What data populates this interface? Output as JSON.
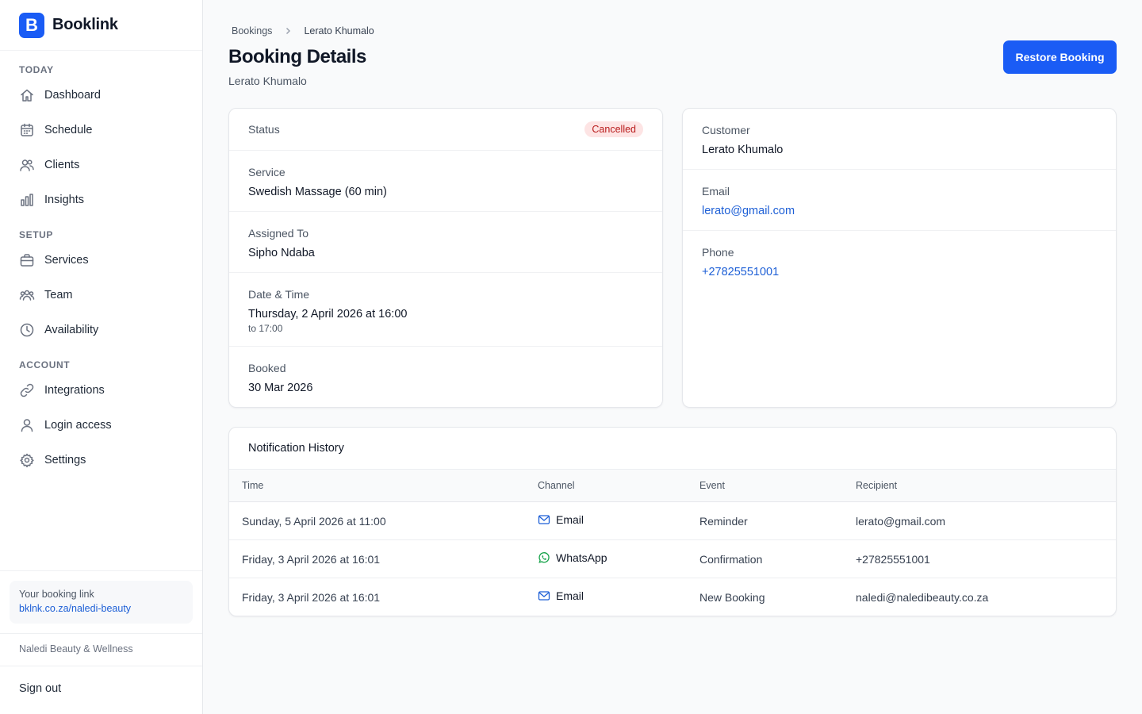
{
  "brand": {
    "logo_letter": "B",
    "name": "Booklink",
    "accent": "#1a5cf5"
  },
  "sidebar": {
    "sections": [
      {
        "label": "TODAY",
        "items": [
          {
            "label": "Dashboard",
            "icon": "home-icon"
          },
          {
            "label": "Schedule",
            "icon": "calendar-icon"
          },
          {
            "label": "Clients",
            "icon": "users-icon"
          },
          {
            "label": "Insights",
            "icon": "bar-chart-icon"
          }
        ]
      },
      {
        "label": "SETUP",
        "items": [
          {
            "label": "Services",
            "icon": "briefcase-icon"
          },
          {
            "label": "Team",
            "icon": "team-icon"
          },
          {
            "label": "Availability",
            "icon": "clock-icon"
          }
        ]
      },
      {
        "label": "ACCOUNT",
        "items": [
          {
            "label": "Integrations",
            "icon": "link-icon"
          },
          {
            "label": "Login access",
            "icon": "user-icon"
          },
          {
            "label": "Settings",
            "icon": "gear-icon"
          }
        ]
      }
    ],
    "booking_link": {
      "label": "Your booking link",
      "url": "bklnk.co.za/naledi-beauty"
    },
    "business_name": "Naledi Beauty & Wellness",
    "sign_out": "Sign out"
  },
  "breadcrumb": {
    "root": "Bookings",
    "current": "Lerato Khumalo"
  },
  "page": {
    "title": "Booking Details",
    "subtitle": "Lerato Khumalo",
    "restore_label": "Restore Booking"
  },
  "booking": {
    "status_label": "Status",
    "status_value": "Cancelled",
    "service_label": "Service",
    "service_value": "Swedish Massage (60 min)",
    "assigned_label": "Assigned To",
    "assigned_value": "Sipho Ndaba",
    "datetime_label": "Date & Time",
    "datetime_value": "Thursday, 2 April 2026 at 16:00",
    "datetime_end": "to 17:00",
    "booked_label": "Booked",
    "booked_value": "30 Mar 2026"
  },
  "customer": {
    "customer_label": "Customer",
    "customer_value": "Lerato Khumalo",
    "email_label": "Email",
    "email_value": "lerato@gmail.com",
    "phone_label": "Phone",
    "phone_value": "+27825551001"
  },
  "notifications": {
    "title": "Notification History",
    "columns": {
      "time": "Time",
      "channel": "Channel",
      "event": "Event",
      "recipient": "Recipient"
    },
    "rows": [
      {
        "time": "Sunday, 5 April 2026 at 11:00",
        "channel": "Email",
        "channel_icon": "mail-icon",
        "event": "Reminder",
        "recipient": "lerato@gmail.com"
      },
      {
        "time": "Friday, 3 April 2026 at 16:01",
        "channel": "WhatsApp",
        "channel_icon": "whatsapp-icon",
        "event": "Confirmation",
        "recipient": "+27825551001"
      },
      {
        "time": "Friday, 3 April 2026 at 16:01",
        "channel": "Email",
        "channel_icon": "mail-icon",
        "event": "New Booking",
        "recipient": "naledi@naledibeauty.co.za"
      }
    ]
  }
}
